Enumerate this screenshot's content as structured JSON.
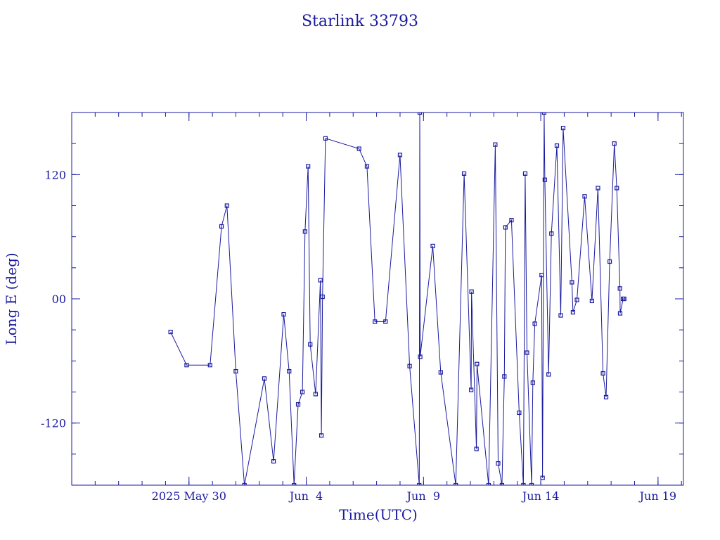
{
  "chart_data": {
    "type": "line",
    "title": "Starlink 33793",
    "xlabel": "Time(UTC)",
    "ylabel": "Long E (deg)",
    "ylim": [
      -180,
      180
    ],
    "xlim": [
      "2025-05-25T00:00",
      "2025-06-20T02:00"
    ],
    "x_ticks": [
      {
        "value": "2025-05-30",
        "label": "2025 May 30"
      },
      {
        "value": "2025-06-04",
        "label": "Jun  4"
      },
      {
        "value": "2025-06-09",
        "label": "Jun  9"
      },
      {
        "value": "2025-06-14",
        "label": "Jun 14"
      },
      {
        "value": "2025-06-19",
        "label": "Jun 19"
      }
    ],
    "y_ticks": [
      {
        "value": 120,
        "label": "120"
      },
      {
        "value": 0,
        "label": "00"
      },
      {
        "value": -120,
        "label": "-120"
      }
    ],
    "series": [
      {
        "color": "#1a1aa0",
        "marker": "square",
        "x": [
          "2025-05-29T05:12",
          "2025-05-29T21:36",
          "2025-05-30T21:35",
          "2025-05-31T09:18",
          "2025-05-31T14:52",
          "2025-05-31T23:55",
          "2025-06-01T08:44",
          "2025-06-02T05:08",
          "2025-06-02T14:35",
          "2025-06-03T00:57",
          "2025-06-03T06:31",
          "2025-06-03T11:30",
          "2025-06-03T15:43",
          "2025-06-03T20:03",
          "2025-06-03T22:46",
          "2025-06-04T01:53",
          "2025-06-04T04:05",
          "2025-06-04T09:35",
          "2025-06-04T14:31",
          "2025-06-04T15:30",
          "2025-06-04T16:41",
          "2025-06-04T19:41",
          "2025-06-06T06:02",
          "2025-06-06T14:10",
          "2025-06-06T22:17",
          "2025-06-07T09:06",
          "2025-06-07T23:59",
          "2025-06-08T09:48",
          "2025-06-08T19:38",
          "2025-06-08T20:10",
          "2025-06-08T20:37",
          "2025-06-09T09:30",
          "2025-06-09T17:38",
          "2025-06-10T09:01",
          "2025-06-10T17:33",
          "2025-06-11T00:47",
          "2025-06-11T01:09",
          "2025-06-11T06:12",
          "2025-06-11T06:44",
          "2025-06-11T18:38",
          "2025-06-12T01:26",
          "2025-06-12T04:23",
          "2025-06-12T08:18",
          "2025-06-12T10:44",
          "2025-06-12T11:49",
          "2025-06-12T18:02",
          "2025-06-13T01:54",
          "2025-06-13T06:14",
          "2025-06-13T08:04",
          "2025-06-13T09:53",
          "2025-06-13T14:37",
          "2025-06-13T15:53",
          "2025-06-13T17:53",
          "2025-06-14T00:53",
          "2025-06-14T01:49",
          "2025-06-14T03:27",
          "2025-06-14T04:10",
          "2025-06-14T08:00",
          "2025-06-14T10:54",
          "2025-06-14T16:28",
          "2025-06-14T20:25",
          "2025-06-14T22:55",
          "2025-06-15T07:53",
          "2025-06-15T08:59",
          "2025-06-15T13:01",
          "2025-06-15T20:54",
          "2025-06-16T04:23",
          "2025-06-16T10:32",
          "2025-06-16T15:41",
          "2025-06-16T18:52",
          "2025-06-16T22:33",
          "2025-06-17T03:17",
          "2025-06-17T05:49",
          "2025-06-17T09:00",
          "2025-06-17T09:13",
          "2025-06-17T12:17",
          "2025-06-17T13:22"
        ],
        "y": [
          -32,
          -64,
          -64,
          70,
          90,
          -70,
          -180,
          -77,
          -157,
          -15,
          -70,
          -180,
          -102,
          -90,
          65,
          128,
          -44,
          -92,
          18,
          -132,
          2,
          155,
          145,
          128,
          -22,
          -22,
          139,
          -65,
          -180,
          180,
          -56,
          51,
          -71,
          -180,
          121,
          -88,
          7,
          -145,
          -63,
          -180,
          149,
          -159,
          -180,
          -75,
          69,
          76,
          -110,
          -180,
          121,
          -52,
          -180,
          -81,
          -24,
          23,
          -173,
          180,
          115,
          -73,
          63,
          148,
          -16,
          165,
          16,
          -13,
          -1,
          99,
          -2,
          107,
          -72,
          -95,
          36,
          150,
          107,
          10,
          -14,
          0,
          0
        ]
      }
    ]
  }
}
